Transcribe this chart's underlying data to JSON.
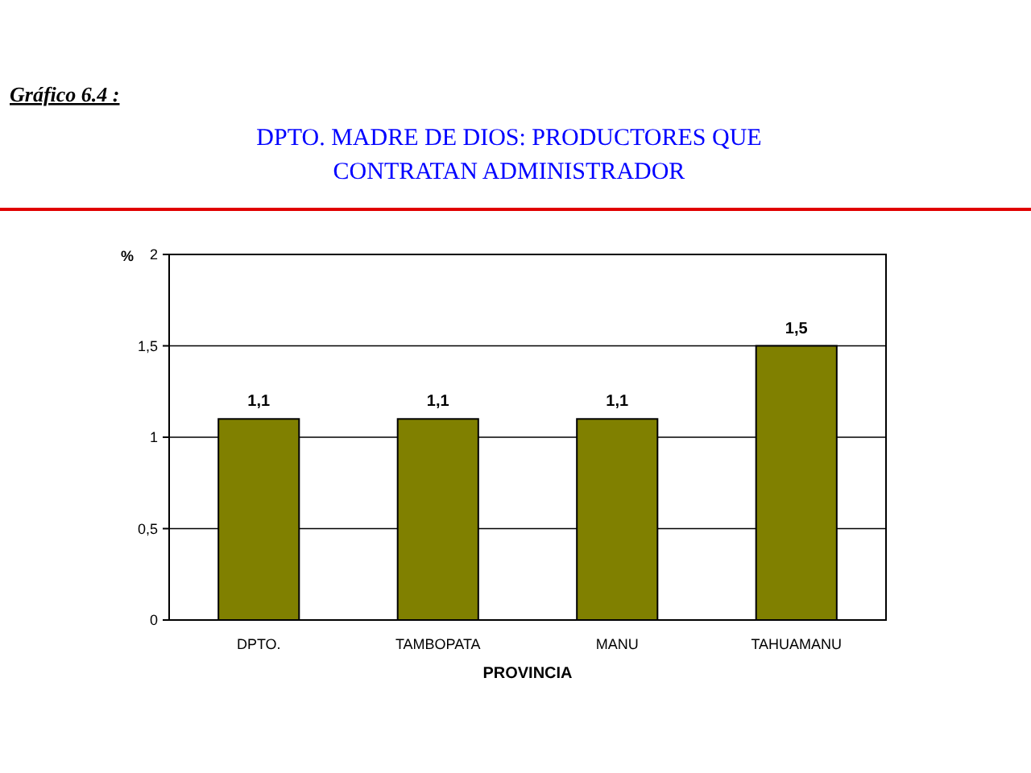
{
  "chart_data": {
    "type": "bar",
    "title": "DPTO. MADRE DE DIOS: PRODUCTORES QUE\nCONTRATAN ADMINISTRADOR",
    "annotations": [
      "Gráfico 6.4 :"
    ],
    "xlabel": "PROVINCIA",
    "ylabel": "%",
    "categories": [
      "DPTO.",
      "TAMBOPATA",
      "MANU",
      "TAHUAMANU"
    ],
    "values": [
      1.1,
      1.1,
      1.1,
      1.5
    ],
    "value_labels": [
      "1,1",
      "1,1",
      "1,1",
      "1,5"
    ],
    "color": "#808000",
    "ylim": [
      0,
      2
    ],
    "yticks": [
      0,
      {
        "value": 0.5,
        "label": "0,5"
      },
      1,
      {
        "value": 1.5,
        "label": "1,5"
      },
      2
    ],
    "grid": "y"
  }
}
